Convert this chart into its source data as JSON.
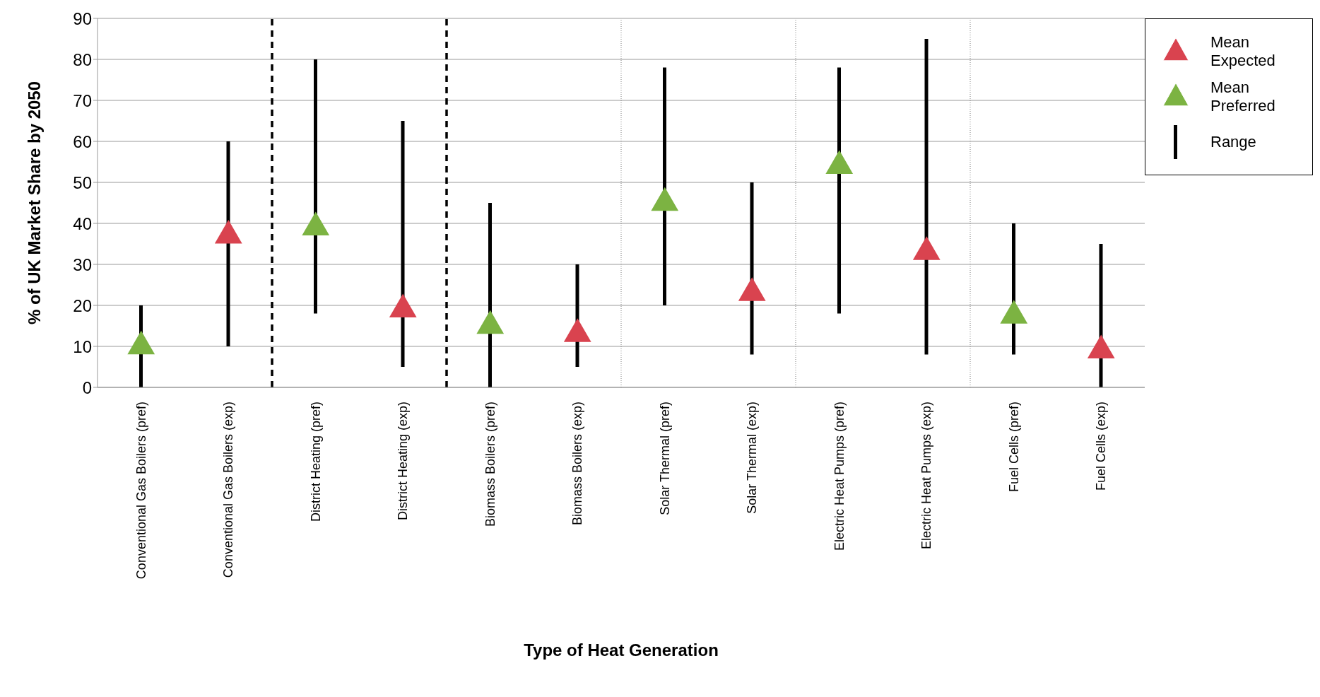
{
  "chart_data": {
    "type": "scatter",
    "xlabel": "Type of Heat Generation",
    "ylabel": "% of UK Market Share by 2050",
    "categories": [
      "Conventional Gas Boilers (pref)",
      "Conventional Gas Boilers (exp)",
      "District Heating (pref)",
      "District Heating (exp)",
      "Biomass Boilers (pref)",
      "Biomass Boilers (exp)",
      "Solar Thermal (pref)",
      "Solar Thermal (exp)",
      "Electric Heat Pumps (pref)",
      "Electric Heat Pumps (exp)",
      "Fuel Cells (pref)",
      "Fuel Cells (exp)"
    ],
    "series": [
      {
        "name": "Mean Expected",
        "color": "#d9434f",
        "values": [
          null,
          37,
          null,
          19,
          null,
          13,
          null,
          23,
          null,
          33,
          null,
          9
        ]
      },
      {
        "name": "Mean Preferred",
        "color": "#7cb342",
        "values": [
          10,
          null,
          39,
          null,
          15,
          null,
          45,
          null,
          54,
          null,
          17.5,
          null
        ]
      },
      {
        "name": "Range",
        "type": "bar",
        "color": "#000000",
        "base": [
          0,
          10,
          18,
          5,
          0,
          5,
          20,
          8,
          18,
          8,
          8,
          0
        ],
        "values": [
          20,
          50,
          62,
          60,
          45,
          25,
          58,
          42,
          60,
          77,
          32,
          35
        ]
      }
    ],
    "marker": "triangle",
    "ylim": [
      0,
      90
    ],
    "yticks": [
      0,
      10,
      20,
      30,
      40,
      50,
      60,
      70,
      80,
      90
    ],
    "grid": "y",
    "legend": "top right"
  }
}
